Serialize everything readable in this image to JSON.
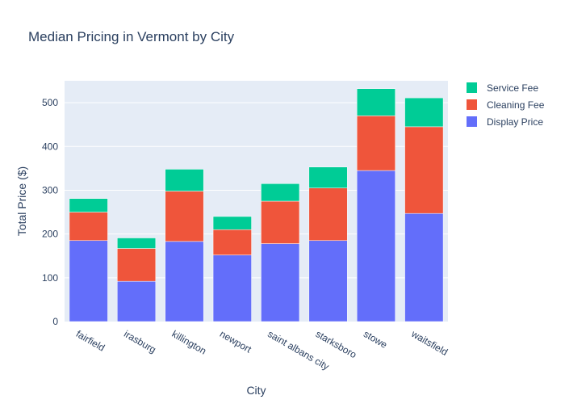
{
  "chart_data": {
    "type": "bar",
    "barmode": "stack",
    "title": "Median Pricing in Vermont by City",
    "xlabel": "City",
    "ylabel": "Total Price ($)",
    "ylim": [
      0,
      550
    ],
    "yticks": [
      0,
      100,
      200,
      300,
      400,
      500
    ],
    "grid": true,
    "legend": "top-right",
    "categories": [
      "fairfield",
      "irasburg",
      "killington",
      "newport",
      "saint albans city",
      "starksboro",
      "stowe",
      "waitsfield"
    ],
    "series": [
      {
        "name": "Display Price",
        "color": "#636efa",
        "values": [
          185,
          92,
          183,
          152,
          178,
          185,
          345,
          247
        ]
      },
      {
        "name": "Cleaning Fee",
        "color": "#ef553b",
        "values": [
          65,
          75,
          115,
          58,
          97,
          120,
          125,
          198
        ]
      },
      {
        "name": "Service Fee",
        "color": "#00cc96",
        "values": [
          31,
          24,
          50,
          30,
          40,
          48,
          62,
          66
        ]
      }
    ]
  },
  "legend_order": [
    2,
    1,
    0
  ],
  "colors": {
    "plot_background": "#e5ecf6",
    "text": "#2a3f5f",
    "tick_text": "#506784"
  }
}
